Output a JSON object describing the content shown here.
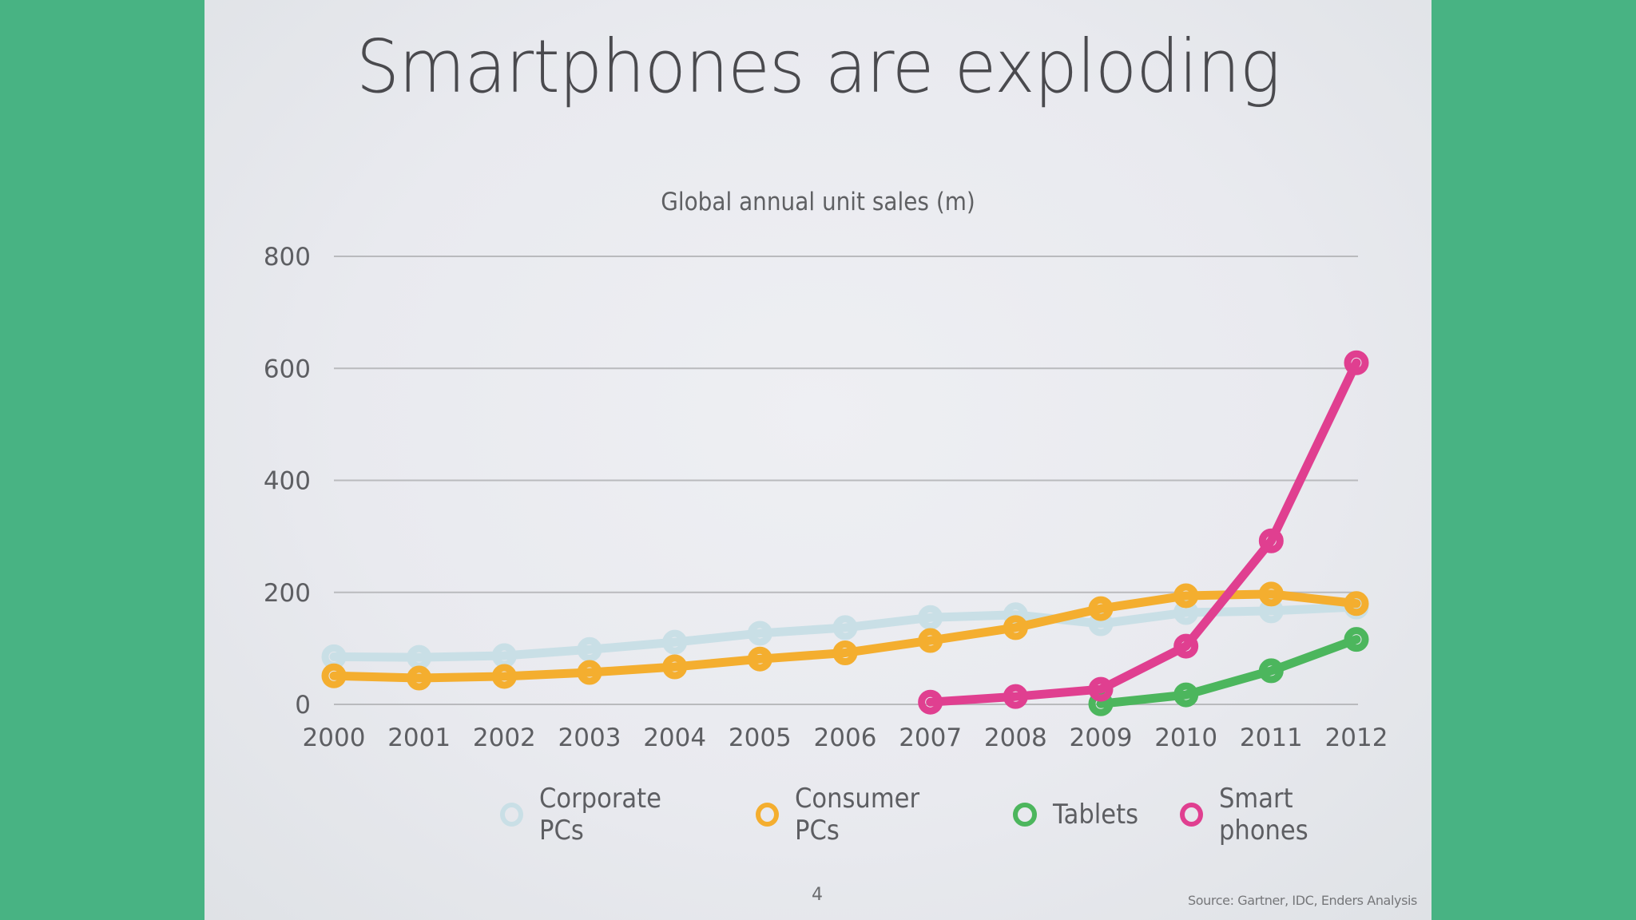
{
  "slide": {
    "title": "Smartphones are exploding",
    "page_number": "4",
    "source": "Source: Gartner, IDC, Enders Analysis"
  },
  "colors": {
    "background": "#48b383",
    "corporate_pcs": "#c9dfe6",
    "consumer_pcs": "#f4ae2f",
    "tablets": "#4cb65d",
    "smart_phones": "#e03f90",
    "gridline": "#b9babd"
  },
  "chart_data": {
    "type": "line",
    "title": "Global annual unit sales (m)",
    "xlabel": "",
    "ylabel": "",
    "x": [
      2000,
      2001,
      2002,
      2003,
      2004,
      2005,
      2006,
      2007,
      2008,
      2009,
      2010,
      2011,
      2012
    ],
    "x_tick_labels": [
      "2000",
      "2001",
      "2002",
      "2003",
      "2004",
      "2005",
      "2006",
      "2007",
      "2008",
      "2009",
      "2010",
      "2011",
      "2012"
    ],
    "ylim": [
      0,
      800
    ],
    "y_ticks": [
      0,
      200,
      400,
      600,
      800
    ],
    "y_tick_labels": [
      "0",
      "200",
      "400",
      "600",
      "800"
    ],
    "grid": true,
    "legend_position": "bottom",
    "series": [
      {
        "name": "Corporate PCs",
        "color": "#c9dfe6",
        "values": [
          85,
          84,
          87,
          98,
          111,
          127,
          137,
          155,
          160,
          144,
          164,
          167,
          174
        ]
      },
      {
        "name": "Consumer PCs",
        "color": "#f4ae2f",
        "values": [
          51,
          47,
          50,
          57,
          67,
          81,
          92,
          114,
          137,
          171,
          194,
          197,
          180
        ]
      },
      {
        "name": "Tablets",
        "color": "#4cb65d",
        "values": [
          null,
          null,
          null,
          null,
          null,
          null,
          null,
          null,
          null,
          1,
          17,
          60,
          116
        ]
      },
      {
        "name": "Smart phones",
        "color": "#e03f90",
        "values": [
          null,
          null,
          null,
          null,
          null,
          null,
          null,
          4,
          14,
          27,
          104,
          292,
          610
        ]
      }
    ]
  }
}
